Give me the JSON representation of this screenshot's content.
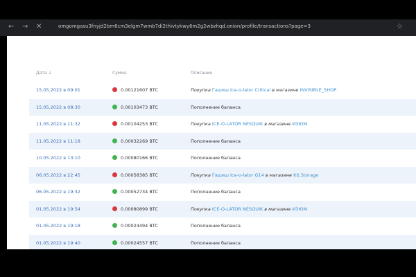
{
  "browser": {
    "url": "omgomgasu3fnyjd2bm6cm3elgm7wmb7di2thivtykwy6m2g2wbzhqd.onion/profile/transactions?page=3"
  },
  "table": {
    "headers": [
      "Дата ↓",
      "Сумма",
      "Описание"
    ],
    "rows": [
      {
        "date": "15.05.2022 в 09:01",
        "amount": "0.00121607 BTC",
        "description": {
          "prefix": "Покупка",
          "item": "Гашиш Ice-o-lator Critical",
          "middle": "в магазине",
          "shop": "INVISIBLE_SHOP"
        }
      },
      {
        "date": "15.05.2022 в 08:30",
        "amount": "0.00103473 BTC",
        "description": "Пополнение баланса"
      },
      {
        "date": "11.05.2022 в 11:32",
        "amount": "0.00104253 BTC",
        "description": {
          "prefix": "Покупка",
          "item": "ICE-O-LATOR NESQUIK",
          "middle": "в магазине",
          "shop": "ИЗЮМ"
        }
      },
      {
        "date": "11.05.2022 в 11:18",
        "amount": "0.00032269 BTC",
        "description": "Пополнение баланса"
      },
      {
        "date": "10.05.2022 в 13:10",
        "amount": "0.00080166 BTC",
        "description": "Пополнение баланса"
      },
      {
        "date": "06.05.2022 в 22:45",
        "amount": "0.00058385 BTC",
        "description": {
          "prefix": "Покупка",
          "item": "Гашиш Ice-o-lator G14",
          "middle": "в магазине",
          "shop": "Kit.Storage"
        }
      },
      {
        "date": "06.05.2022 в 19:32",
        "amount": "0.00052734 BTC",
        "description": "Пополнение баланса"
      },
      {
        "date": "01.05.2022 в 19:54",
        "amount": "0.00080899 BTC",
        "description": {
          "prefix": "Покупка",
          "item": "ICE-O-LATOR NESQUIK",
          "middle": "в магазине",
          "shop": "ИЗЮМ"
        }
      },
      {
        "date": "01.05.2022 в 19:18",
        "amount": "0.00024494 BTC",
        "description": "Пополнение баланса"
      },
      {
        "date": "01.05.2022 в 19:40",
        "amount": "0.00024557 BTC",
        "description": "Пополнение баланса"
      }
    ]
  }
}
